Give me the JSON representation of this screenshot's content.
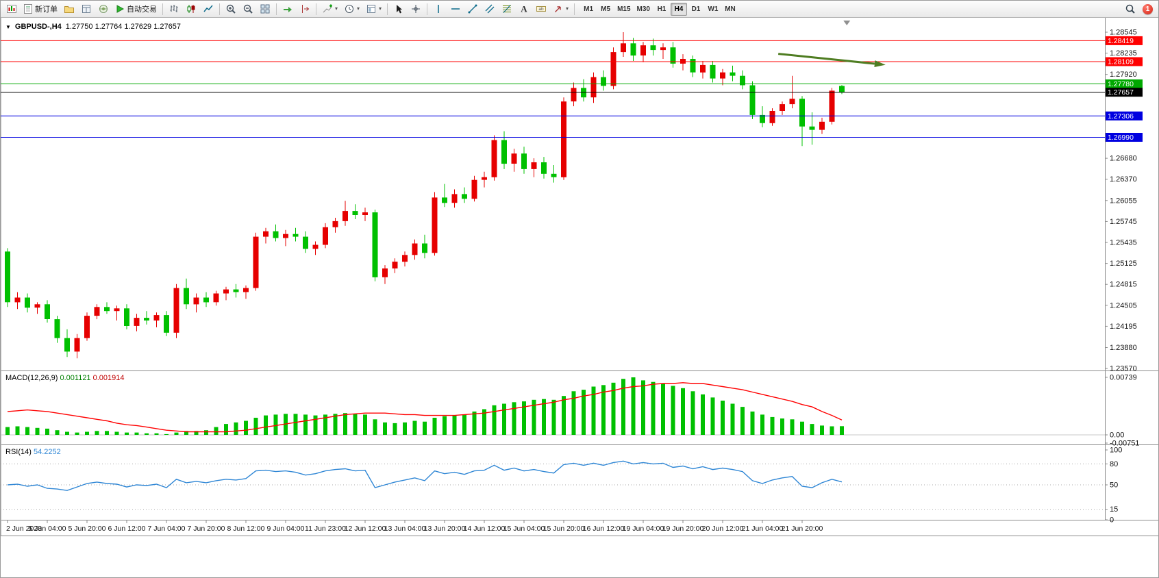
{
  "window": {
    "badge_count": "1"
  },
  "toolbar": {
    "new_order_label": "新订单",
    "autotrading_label": "自动交易",
    "timeframes": [
      "M1",
      "M5",
      "M15",
      "M30",
      "H1",
      "H4",
      "D1",
      "W1",
      "MN"
    ],
    "active_timeframe": "H4"
  },
  "chart_header": {
    "collapse_arrow": "▼",
    "symbol": "GBPUSD-,H4",
    "ohlc": "1.27750 1.27764 1.27629 1.27657"
  },
  "chart_data": {
    "type": "candlestick",
    "symbol": "GBPUSD-",
    "timeframe": "H4",
    "current_bar": {
      "open": 1.2775,
      "high": 1.27764,
      "low": 1.27629,
      "close": 1.27657
    },
    "colors": {
      "up": "#e60000",
      "down": "#00c000",
      "red": "#ff0000",
      "green": "#00a800",
      "blue": "#0000e0",
      "bid": "#000000",
      "macd_histogram": "#00c000",
      "macd_signal": "#ff0000",
      "rsi_line": "#2e86d5",
      "arrow": "#4f7d22"
    },
    "y_axis_labels": [
      {
        "price": "1.28545",
        "style": "plain"
      },
      {
        "price": "1.28419",
        "style": "red"
      },
      {
        "price": "1.28235",
        "style": "plain"
      },
      {
        "price": "1.28109",
        "style": "red"
      },
      {
        "price": "1.27920",
        "style": "plain"
      },
      {
        "price": "1.27780",
        "style": "green"
      },
      {
        "price": "1.27657",
        "style": "bid"
      },
      {
        "price": "1.27306",
        "style": "blue"
      },
      {
        "price": "1.26990",
        "style": "blue"
      },
      {
        "price": "1.26680",
        "style": "plain"
      },
      {
        "price": "1.26370",
        "style": "plain"
      },
      {
        "price": "1.26055",
        "style": "plain"
      },
      {
        "price": "1.25745",
        "style": "plain"
      },
      {
        "price": "1.25435",
        "style": "plain"
      },
      {
        "price": "1.25125",
        "style": "plain"
      },
      {
        "price": "1.24815",
        "style": "plain"
      },
      {
        "price": "1.24505",
        "style": "plain"
      },
      {
        "price": "1.24195",
        "style": "plain"
      },
      {
        "price": "1.23880",
        "style": "plain"
      },
      {
        "price": "1.23570",
        "style": "plain"
      }
    ],
    "price_lines": [
      {
        "price": 1.28419,
        "style": "red"
      },
      {
        "price": 1.28109,
        "style": "red"
      },
      {
        "price": 1.2778,
        "style": "green"
      },
      {
        "price": 1.27657,
        "style": "bid"
      },
      {
        "price": 1.27306,
        "style": "blue"
      },
      {
        "price": 1.2699,
        "style": "blue"
      }
    ],
    "x_labels": [
      "2 Jun 2023",
      "5 Jun 04:00",
      "5 Jun 20:00",
      "6 Jun 12:00",
      "7 Jun 04:00",
      "7 Jun 20:00",
      "8 Jun 12:00",
      "9 Jun 04:00",
      "11 Jun 23:00",
      "12 Jun 12:00",
      "13 Jun 04:00",
      "13 Jun 20:00",
      "14 Jun 12:00",
      "15 Jun 04:00",
      "15 Jun 20:00",
      "16 Jun 12:00",
      "19 Jun 04:00",
      "19 Jun 20:00",
      "20 Jun 12:00",
      "21 Jun 04:00",
      "21 Jun 20:00"
    ],
    "candles": [
      [
        1.253,
        1.2535,
        1.2448,
        1.2455
      ],
      [
        1.2455,
        1.247,
        1.2445,
        1.2462
      ],
      [
        1.2462,
        1.2468,
        1.244,
        1.2447
      ],
      [
        1.2447,
        1.2455,
        1.2438,
        1.2452
      ],
      [
        1.2452,
        1.2458,
        1.2425,
        1.243
      ],
      [
        1.243,
        1.2435,
        1.2395,
        1.2402
      ],
      [
        1.2402,
        1.2415,
        1.2374,
        1.2382
      ],
      [
        1.2382,
        1.2408,
        1.2372,
        1.2402
      ],
      [
        1.2402,
        1.244,
        1.2398,
        1.2435
      ],
      [
        1.2435,
        1.2452,
        1.243,
        1.2448
      ],
      [
        1.2448,
        1.2455,
        1.2438,
        1.2442
      ],
      [
        1.2442,
        1.245,
        1.2428,
        1.2446
      ],
      [
        1.2446,
        1.2452,
        1.2415,
        1.242
      ],
      [
        1.242,
        1.2438,
        1.2412,
        1.2432
      ],
      [
        1.2432,
        1.2442,
        1.2422,
        1.2428
      ],
      [
        1.2428,
        1.244,
        1.2418,
        1.2436
      ],
      [
        1.2436,
        1.2442,
        1.2405,
        1.241
      ],
      [
        1.241,
        1.2482,
        1.2402,
        1.2476
      ],
      [
        1.2476,
        1.249,
        1.2445,
        1.2452
      ],
      [
        1.2452,
        1.2468,
        1.244,
        1.2462
      ],
      [
        1.2462,
        1.247,
        1.2448,
        1.2455
      ],
      [
        1.2455,
        1.2472,
        1.245,
        1.2468
      ],
      [
        1.2468,
        1.2478,
        1.2458,
        1.2474
      ],
      [
        1.2474,
        1.2482,
        1.2462,
        1.247
      ],
      [
        1.247,
        1.248,
        1.246,
        1.2476
      ],
      [
        1.2476,
        1.2558,
        1.2472,
        1.2552
      ],
      [
        1.2552,
        1.2565,
        1.2542,
        1.256
      ],
      [
        1.256,
        1.257,
        1.2545,
        1.255
      ],
      [
        1.255,
        1.2562,
        1.2538,
        1.2556
      ],
      [
        1.2556,
        1.2565,
        1.2545,
        1.2552
      ],
      [
        1.2552,
        1.256,
        1.2528,
        1.2534
      ],
      [
        1.2534,
        1.2545,
        1.2525,
        1.254
      ],
      [
        1.254,
        1.2572,
        1.2535,
        1.2566
      ],
      [
        1.2566,
        1.258,
        1.2558,
        1.2575
      ],
      [
        1.2575,
        1.2605,
        1.2568,
        1.259
      ],
      [
        1.259,
        1.26,
        1.2578,
        1.2584
      ],
      [
        1.2584,
        1.2595,
        1.2575,
        1.2588
      ],
      [
        1.2588,
        1.2592,
        1.2486,
        1.2492
      ],
      [
        1.2492,
        1.251,
        1.2482,
        1.2505
      ],
      [
        1.2505,
        1.252,
        1.2498,
        1.2515
      ],
      [
        1.2515,
        1.253,
        1.2508,
        1.2525
      ],
      [
        1.2525,
        1.2548,
        1.2518,
        1.2542
      ],
      [
        1.2542,
        1.2555,
        1.252,
        1.2528
      ],
      [
        1.2528,
        1.2618,
        1.2524,
        1.261
      ],
      [
        1.261,
        1.263,
        1.2596,
        1.2602
      ],
      [
        1.2602,
        1.2622,
        1.2595,
        1.2615
      ],
      [
        1.2615,
        1.2625,
        1.2602,
        1.2608
      ],
      [
        1.2608,
        1.2642,
        1.2604,
        1.2636
      ],
      [
        1.2636,
        1.2648,
        1.2625,
        1.264
      ],
      [
        1.264,
        1.2702,
        1.2635,
        1.2695
      ],
      [
        1.2695,
        1.2708,
        1.2652,
        1.266
      ],
      [
        1.266,
        1.2682,
        1.2648,
        1.2675
      ],
      [
        1.2675,
        1.2685,
        1.2645,
        1.2652
      ],
      [
        1.2652,
        1.2668,
        1.264,
        1.2662
      ],
      [
        1.2662,
        1.267,
        1.2638,
        1.2645
      ],
      [
        1.2645,
        1.2658,
        1.2632,
        1.264
      ],
      [
        1.264,
        1.2758,
        1.2636,
        1.2752
      ],
      [
        1.2752,
        1.278,
        1.2745,
        1.2772
      ],
      [
        1.2772,
        1.2785,
        1.2752,
        1.2758
      ],
      [
        1.2758,
        1.2795,
        1.275,
        1.2788
      ],
      [
        1.2788,
        1.2798,
        1.2768,
        1.2775
      ],
      [
        1.2775,
        1.2832,
        1.277,
        1.2825
      ],
      [
        1.2825,
        1.28545,
        1.2818,
        1.2838
      ],
      [
        1.2838,
        1.2846,
        1.2812,
        1.282
      ],
      [
        1.282,
        1.284,
        1.281,
        1.2835
      ],
      [
        1.2835,
        1.2845,
        1.282,
        1.2828
      ],
      [
        1.2828,
        1.2838,
        1.2815,
        1.2832
      ],
      [
        1.2832,
        1.284,
        1.2802,
        1.2808
      ],
      [
        1.2808,
        1.2822,
        1.2798,
        1.2815
      ],
      [
        1.2815,
        1.282,
        1.2788,
        1.2795
      ],
      [
        1.2795,
        1.2812,
        1.2786,
        1.2806
      ],
      [
        1.2806,
        1.2812,
        1.278,
        1.2786
      ],
      [
        1.2786,
        1.28,
        1.2776,
        1.2795
      ],
      [
        1.2795,
        1.2805,
        1.2782,
        1.279
      ],
      [
        1.279,
        1.2798,
        1.277,
        1.2776
      ],
      [
        1.2776,
        1.2782,
        1.2726,
        1.2732
      ],
      [
        1.2732,
        1.2745,
        1.2714,
        1.272
      ],
      [
        1.272,
        1.2742,
        1.2716,
        1.2738
      ],
      [
        1.2738,
        1.2752,
        1.2732,
        1.2748
      ],
      [
        1.2748,
        1.279,
        1.2742,
        1.2756
      ],
      [
        1.2756,
        1.276,
        1.2686,
        1.2715
      ],
      [
        1.2715,
        1.2736,
        1.2688,
        1.271
      ],
      [
        1.271,
        1.2728,
        1.2704,
        1.2722
      ],
      [
        1.2722,
        1.2772,
        1.2718,
        1.2768
      ],
      [
        1.2775,
        1.27764,
        1.27629,
        1.27657
      ]
    ],
    "macd": {
      "name": "MACD(12,26,9)",
      "main_value": "0.001121",
      "signal_value": "0.001914",
      "scale_max": "0.00739",
      "scale_zero": "0.00",
      "scale_min": "-0.00751",
      "histogram": [
        0.001,
        0.0011,
        0.001,
        0.0009,
        0.0008,
        0.0006,
        0.0004,
        0.0003,
        0.0004,
        0.0005,
        0.0005,
        0.0004,
        0.0003,
        0.0003,
        0.0002,
        0.0002,
        0.0001,
        0.0003,
        0.0005,
        0.0005,
        0.0006,
        0.001,
        0.0014,
        0.0016,
        0.0018,
        0.0022,
        0.0025,
        0.0026,
        0.0027,
        0.0027,
        0.0026,
        0.0025,
        0.0026,
        0.0027,
        0.0028,
        0.0027,
        0.0026,
        0.002,
        0.0016,
        0.0015,
        0.0016,
        0.0018,
        0.0017,
        0.0022,
        0.0024,
        0.0025,
        0.0026,
        0.003,
        0.0033,
        0.0038,
        0.004,
        0.0042,
        0.0043,
        0.0045,
        0.0046,
        0.0045,
        0.005,
        0.0056,
        0.0058,
        0.0062,
        0.0064,
        0.0067,
        0.0072,
        0.00739,
        0.007,
        0.0068,
        0.0066,
        0.0063,
        0.006,
        0.0056,
        0.0052,
        0.0048,
        0.0044,
        0.004,
        0.0036,
        0.003,
        0.0026,
        0.0023,
        0.0021,
        0.002,
        0.0017,
        0.0014,
        0.0012,
        0.0011,
        0.001121
      ],
      "signal": [
        0.003,
        0.0031,
        0.0032,
        0.0031,
        0.003,
        0.0028,
        0.0026,
        0.0024,
        0.0022,
        0.002,
        0.0018,
        0.0015,
        0.0013,
        0.0012,
        0.001,
        0.0008,
        0.0006,
        0.0005,
        0.0004,
        0.0004,
        0.0004,
        0.0004,
        0.0004,
        0.0005,
        0.0006,
        0.0008,
        0.001,
        0.0012,
        0.0014,
        0.0016,
        0.0018,
        0.002,
        0.0022,
        0.0024,
        0.0026,
        0.0027,
        0.0028,
        0.0028,
        0.0028,
        0.0027,
        0.0026,
        0.0026,
        0.0025,
        0.0025,
        0.0025,
        0.0025,
        0.0026,
        0.0027,
        0.0028,
        0.003,
        0.0032,
        0.0034,
        0.0036,
        0.0038,
        0.004,
        0.0042,
        0.0045,
        0.0047,
        0.005,
        0.0052,
        0.0055,
        0.0057,
        0.006,
        0.0062,
        0.0063,
        0.0065,
        0.0066,
        0.0066,
        0.0067,
        0.0066,
        0.0066,
        0.0064,
        0.0062,
        0.006,
        0.0058,
        0.0055,
        0.0052,
        0.0049,
        0.0046,
        0.0043,
        0.0039,
        0.0036,
        0.003,
        0.0025,
        0.001914
      ]
    },
    "rsi": {
      "name": "RSI(14)",
      "value": "54.2252",
      "scale": [
        "100",
        "80",
        "50",
        "15",
        "0"
      ],
      "levels": [
        80,
        50,
        15
      ],
      "values": [
        50,
        51,
        48,
        50,
        45,
        44,
        42,
        47,
        52,
        54,
        52,
        51,
        47,
        50,
        49,
        51,
        46,
        58,
        53,
        55,
        53,
        56,
        58,
        57,
        59,
        70,
        71,
        69,
        70,
        68,
        64,
        66,
        70,
        72,
        73,
        70,
        71,
        46,
        50,
        54,
        57,
        60,
        56,
        70,
        66,
        68,
        65,
        70,
        71,
        78,
        71,
        74,
        70,
        72,
        69,
        67,
        79,
        81,
        78,
        81,
        78,
        82,
        84,
        80,
        82,
        80,
        81,
        75,
        77,
        73,
        76,
        72,
        74,
        72,
        69,
        56,
        52,
        57,
        60,
        62,
        48,
        46,
        53,
        58,
        54.2252
      ]
    },
    "annotations": [
      {
        "type": "trend-arrow",
        "bar_from": 77.6,
        "price_from": 1.28225,
        "bar_to": 88.4,
        "price_to": 1.28062
      }
    ],
    "shift_marker_bar": 84.5
  }
}
